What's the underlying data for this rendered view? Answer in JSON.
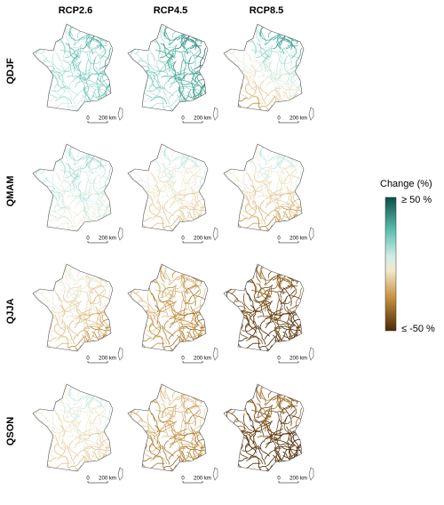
{
  "columns": [
    "RCP2.6",
    "RCP4.5",
    "RCP8.5"
  ],
  "rows": [
    "QDJF",
    "QMAM",
    "QJJA",
    "QSON"
  ],
  "scale_bar": {
    "start": "0",
    "end": "200 km"
  },
  "legend": {
    "title": "Change (%)",
    "max_label": "≥ 50 %",
    "min_label": "≤ -50 %"
  }
}
